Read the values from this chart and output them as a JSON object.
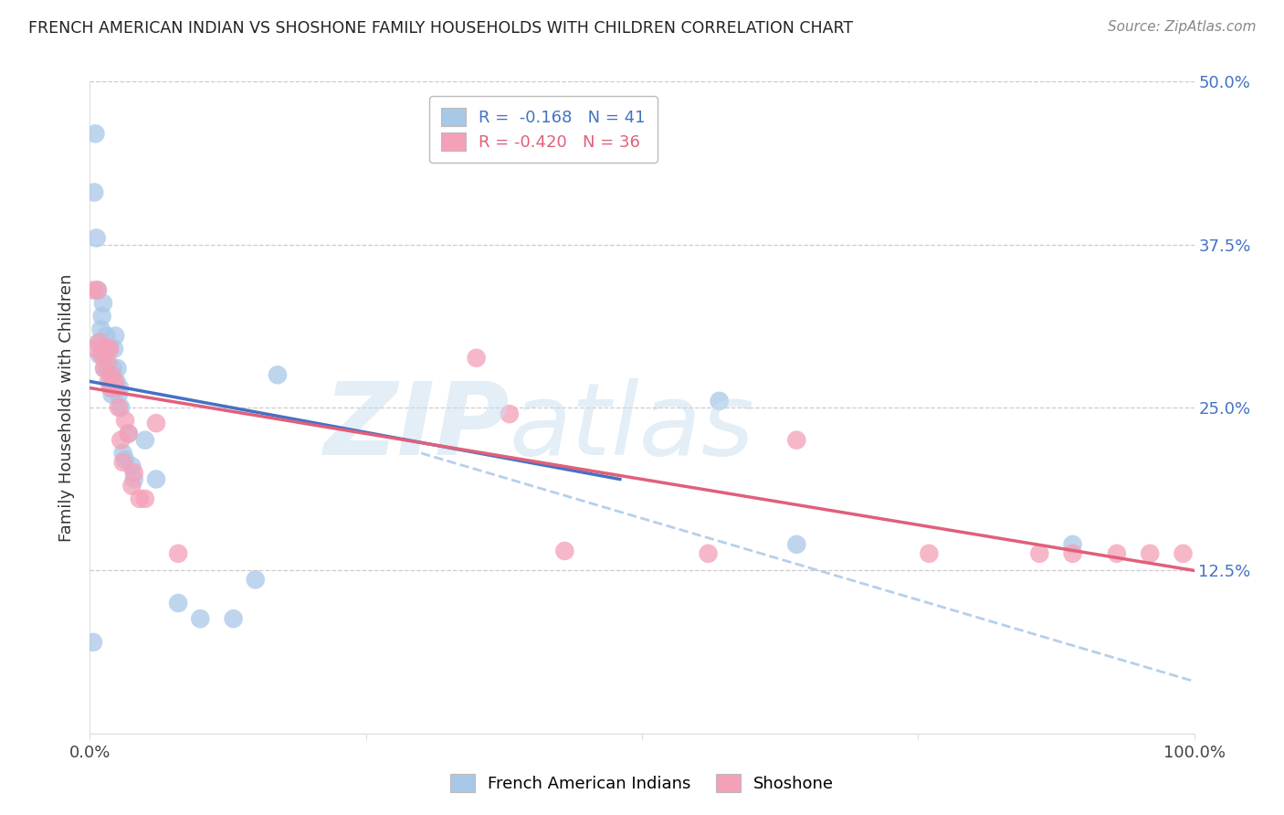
{
  "title": "FRENCH AMERICAN INDIAN VS SHOSHONE FAMILY HOUSEHOLDS WITH CHILDREN CORRELATION CHART",
  "source": "Source: ZipAtlas.com",
  "ylabel": "Family Households with Children",
  "xlim": [
    0,
    1.0
  ],
  "ylim": [
    0,
    0.5
  ],
  "xticks": [
    0.0,
    0.25,
    0.5,
    0.75,
    1.0
  ],
  "xticklabels": [
    "0.0%",
    "",
    "",
    "",
    "100.0%"
  ],
  "yticks": [
    0.0,
    0.125,
    0.25,
    0.375,
    0.5
  ],
  "right_yticks": [
    0.125,
    0.25,
    0.375,
    0.5
  ],
  "right_yticklabels": [
    "12.5%",
    "25.0%",
    "37.5%",
    "50.0%"
  ],
  "blue_R": -0.168,
  "blue_N": 41,
  "pink_R": -0.42,
  "pink_N": 36,
  "blue_color": "#a8c8e8",
  "pink_color": "#f4a0b8",
  "blue_line_color": "#4472c4",
  "pink_line_color": "#e0607a",
  "dashed_line_color": "#a8c8e8",
  "blue_line_x0": 0.0,
  "blue_line_y0": 0.27,
  "blue_line_x1": 0.48,
  "blue_line_y1": 0.195,
  "pink_line_x0": 0.0,
  "pink_line_y0": 0.265,
  "pink_line_x1": 1.0,
  "pink_line_y1": 0.125,
  "dashed_line_x0": 0.3,
  "dashed_line_y0": 0.215,
  "dashed_line_x1": 1.0,
  "dashed_line_y1": 0.04,
  "blue_x": [
    0.003,
    0.004,
    0.005,
    0.006,
    0.007,
    0.008,
    0.009,
    0.01,
    0.011,
    0.012,
    0.013,
    0.014,
    0.015,
    0.016,
    0.017,
    0.018,
    0.019,
    0.02,
    0.021,
    0.022,
    0.023,
    0.024,
    0.025,
    0.026,
    0.027,
    0.028,
    0.03,
    0.032,
    0.035,
    0.038,
    0.04,
    0.05,
    0.06,
    0.08,
    0.1,
    0.13,
    0.15,
    0.17,
    0.57,
    0.64,
    0.89
  ],
  "blue_y": [
    0.07,
    0.415,
    0.46,
    0.38,
    0.34,
    0.3,
    0.29,
    0.31,
    0.32,
    0.33,
    0.28,
    0.29,
    0.305,
    0.28,
    0.295,
    0.275,
    0.265,
    0.26,
    0.28,
    0.295,
    0.305,
    0.27,
    0.28,
    0.26,
    0.265,
    0.25,
    0.215,
    0.21,
    0.23,
    0.205,
    0.195,
    0.225,
    0.195,
    0.1,
    0.088,
    0.088,
    0.118,
    0.275,
    0.255,
    0.145,
    0.145
  ],
  "pink_x": [
    0.003,
    0.005,
    0.007,
    0.009,
    0.011,
    0.013,
    0.015,
    0.016,
    0.017,
    0.018,
    0.019,
    0.02,
    0.022,
    0.024,
    0.026,
    0.028,
    0.03,
    0.032,
    0.035,
    0.038,
    0.04,
    0.045,
    0.05,
    0.06,
    0.08,
    0.35,
    0.38,
    0.43,
    0.56,
    0.64,
    0.76,
    0.86,
    0.89,
    0.93,
    0.96,
    0.99
  ],
  "pink_y": [
    0.34,
    0.295,
    0.34,
    0.3,
    0.29,
    0.28,
    0.295,
    0.285,
    0.27,
    0.295,
    0.265,
    0.275,
    0.27,
    0.265,
    0.25,
    0.225,
    0.208,
    0.24,
    0.23,
    0.19,
    0.2,
    0.18,
    0.18,
    0.238,
    0.138,
    0.288,
    0.245,
    0.14,
    0.138,
    0.225,
    0.138,
    0.138,
    0.138,
    0.138,
    0.138,
    0.138
  ],
  "background_color": "#ffffff",
  "grid_color": "#cccccc",
  "legend_blue_label": "R =  -0.168   N = 41",
  "legend_pink_label": "R = -0.420   N = 36",
  "bottom_legend_blue": "French American Indians",
  "bottom_legend_pink": "Shoshone"
}
